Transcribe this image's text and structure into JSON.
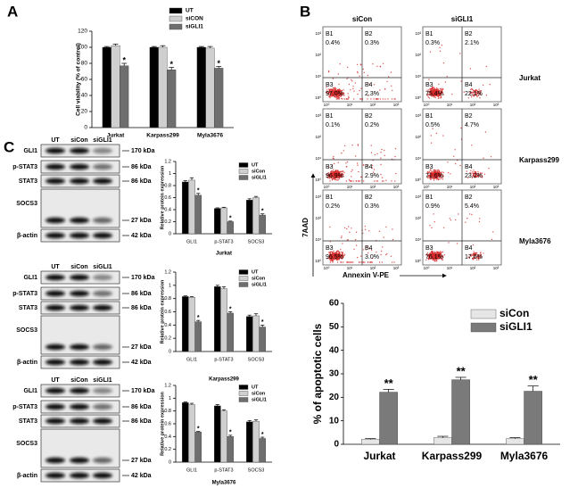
{
  "panels": {
    "a": "A",
    "b": "B",
    "c": "C"
  },
  "chart_data": [
    {
      "type": "bar",
      "ylabel": "Cell viability (% of control)",
      "categories": [
        "Jurkat",
        "Karpass299",
        "Myla3676"
      ],
      "series": [
        {
          "name": "UT",
          "color": "#000000",
          "values": [
            100,
            100,
            100
          ],
          "errors": [
            1,
            1,
            1
          ]
        },
        {
          "name": "siCON",
          "color": "#cfcfcf",
          "values": [
            102,
            100,
            99
          ],
          "errors": [
            2,
            2,
            2
          ]
        },
        {
          "name": "siGLI1",
          "color": "#6e6e6e",
          "values": [
            77,
            72,
            74
          ],
          "errors": [
            3,
            3,
            2
          ],
          "significance": [
            "*",
            "*",
            "*"
          ]
        }
      ],
      "ylim": [
        0,
        120
      ],
      "yticks": [
        0,
        20,
        40,
        60,
        80,
        100,
        120
      ]
    },
    {
      "type": "bar",
      "title": "Jurkat",
      "ylabel": "Relative protein expression",
      "categories": [
        "GLI1",
        "p-STAT3",
        "SOCS3"
      ],
      "series": [
        {
          "name": "UT",
          "color": "#000000",
          "values": [
            0.86,
            0.42,
            0.56
          ],
          "errors": [
            0.02,
            0.01,
            0.02
          ]
        },
        {
          "name": "siCon",
          "color": "#cfcfcf",
          "values": [
            0.89,
            0.43,
            0.6
          ],
          "errors": [
            0.04,
            0.01,
            0.02
          ]
        },
        {
          "name": "siGLI1",
          "color": "#6e6e6e",
          "values": [
            0.64,
            0.2,
            0.31
          ],
          "errors": [
            0.03,
            0.01,
            0.02
          ],
          "significance": [
            "*",
            "*",
            "*"
          ]
        }
      ],
      "ylim": [
        0,
        1.2
      ],
      "yticks": [
        0,
        0.2,
        0.4,
        0.6,
        0.8,
        1,
        1.2
      ]
    },
    {
      "type": "bar",
      "title": "Karpass299",
      "ylabel": "Relative protein expression",
      "categories": [
        "GLI1",
        "p-STAT3",
        "SOCS3"
      ],
      "series": [
        {
          "name": "UT",
          "color": "#000000",
          "values": [
            0.83,
            0.98,
            0.53
          ],
          "errors": [
            0.01,
            0.02,
            0.02
          ]
        },
        {
          "name": "siCon",
          "color": "#cfcfcf",
          "values": [
            0.82,
            0.95,
            0.54
          ],
          "errors": [
            0.01,
            0.03,
            0.03
          ]
        },
        {
          "name": "siGLI1",
          "color": "#6e6e6e",
          "values": [
            0.45,
            0.58,
            0.37
          ],
          "errors": [
            0.02,
            0.02,
            0.03
          ],
          "significance": [
            "*",
            "*",
            "*"
          ]
        }
      ],
      "ylim": [
        0,
        1.2
      ],
      "yticks": [
        0,
        0.2,
        0.4,
        0.6,
        0.8,
        1,
        1.2
      ]
    },
    {
      "type": "bar",
      "title": "Myla3676",
      "ylabel": "Relative protein expression",
      "categories": [
        "GLI1",
        "p-STAT3",
        "SOCS3"
      ],
      "series": [
        {
          "name": "UT",
          "color": "#000000",
          "values": [
            0.93,
            0.88,
            0.63
          ],
          "errors": [
            0.01,
            0.02,
            0.02
          ]
        },
        {
          "name": "siCon",
          "color": "#cfcfcf",
          "values": [
            0.9,
            0.8,
            0.64
          ],
          "errors": [
            0.02,
            0.02,
            0.02
          ]
        },
        {
          "name": "siGLI1",
          "color": "#6e6e6e",
          "values": [
            0.47,
            0.4,
            0.37
          ],
          "errors": [
            0.01,
            0.02,
            0.02
          ],
          "significance": [
            "*",
            "*",
            "*"
          ]
        }
      ],
      "ylim": [
        0,
        1.2
      ],
      "yticks": [
        0,
        0.2,
        0.4,
        0.6,
        0.8,
        1,
        1.2
      ]
    },
    {
      "type": "bar",
      "ylabel": "% of apoptotic cells",
      "categories": [
        "Jurkat",
        "Karpass299",
        "Myla3676"
      ],
      "series": [
        {
          "name": "siCon",
          "color": "#e6e6e6",
          "values": [
            2.1,
            2.8,
            2.4
          ],
          "errors": [
            0.3,
            0.6,
            0.4
          ]
        },
        {
          "name": "siGLI1",
          "color": "#7a7a7a",
          "values": [
            22.2,
            27.5,
            22.6
          ],
          "errors": [
            1.2,
            1,
            2.2
          ],
          "significance": [
            "**",
            "**",
            "**"
          ]
        }
      ],
      "ylim": [
        0,
        60
      ],
      "yticks": [
        0,
        10,
        20,
        30,
        40,
        50,
        60
      ]
    }
  ],
  "blots": {
    "lanes": [
      "UT",
      "siCon",
      "siGLI1"
    ],
    "rows": [
      {
        "name": "GLI1",
        "size": "170 kDa"
      },
      {
        "name": "p-STAT3",
        "size": "86 kDa"
      },
      {
        "name": "STAT3",
        "size": "86 kDa"
      },
      {
        "name": "SOCS3",
        "size": "27 kDa"
      },
      {
        "name": "β-actin",
        "size": "42 kDa"
      }
    ]
  },
  "flow": {
    "columns": [
      "siCon",
      "siGLI1"
    ],
    "rows": [
      "Jurkat",
      "Karpass299",
      "Myla3676"
    ],
    "quadrants": [
      "B1",
      "B2",
      "B3",
      "B4"
    ],
    "ticks": [
      "10⁰",
      "10¹",
      "10²",
      "10³"
    ],
    "xlabel": "Annexin V-PE",
    "ylabel": "7AAD",
    "plots": [
      [
        [
          "0.4%",
          "0.3%",
          "97.0%",
          "2.3%"
        ],
        [
          "0.3%",
          "2.1%",
          "75.4%",
          "22.1%"
        ]
      ],
      [
        [
          "0.1%",
          "0.2%",
          "96.9%",
          "2.9%"
        ],
        [
          "0.5%",
          "4.7%",
          "71.6%",
          "23.2%"
        ]
      ],
      [
        [
          "0.2%",
          "0.3%",
          "96.5%",
          "3.0%"
        ],
        [
          "0.9%",
          "5.4%",
          "76.1%",
          "17.6%"
        ]
      ]
    ]
  }
}
